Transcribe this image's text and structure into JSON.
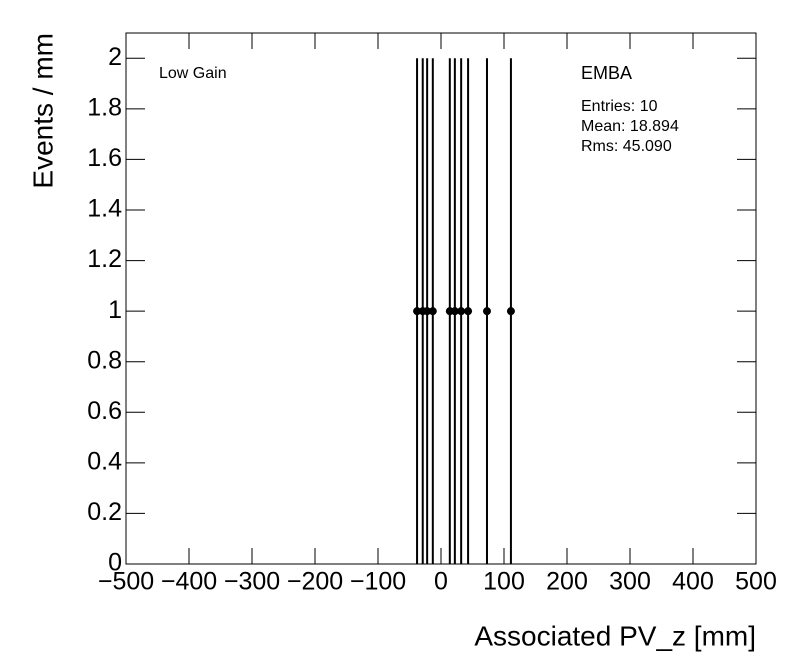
{
  "chart_data": {
    "type": "scatter",
    "x_label": "Associated PV_z [mm]",
    "y_label": "Events / mm",
    "annotations": [
      "Low Gain",
      "EMBA",
      "Entries: 10",
      "Mean: 18.894",
      "Rms: 45.090"
    ],
    "x": [
      -38,
      -29,
      -22,
      -13,
      14,
      22,
      32,
      43,
      73,
      111
    ],
    "values": [
      1,
      1,
      1,
      1,
      1,
      1,
      1,
      1,
      1,
      1
    ],
    "errors": [
      1,
      1,
      1,
      1,
      1,
      1,
      1,
      1,
      1,
      1
    ],
    "color": "#000000",
    "xlim": [
      -500,
      500
    ],
    "xticks": [
      {
        "value": -500,
        "label": "−500"
      },
      {
        "value": -400,
        "label": "−400"
      },
      {
        "value": -300,
        "label": "−300"
      },
      {
        "value": -200,
        "label": "−200"
      },
      {
        "value": -100,
        "label": "−100"
      },
      0,
      100,
      200,
      300,
      400,
      500
    ],
    "ylim": [
      0,
      2.1
    ],
    "yticks": [
      0,
      0.2,
      0.4,
      0.6,
      0.8,
      1,
      1.2,
      1.4,
      1.6,
      1.8,
      2
    ]
  }
}
